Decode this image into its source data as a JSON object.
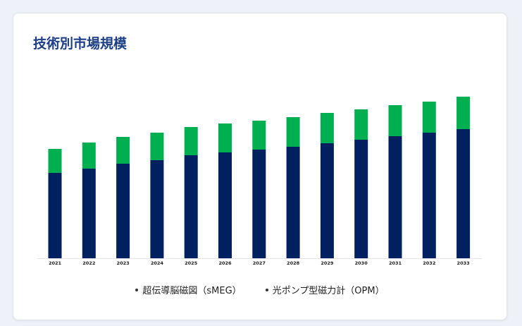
{
  "title": "技術別市場規模",
  "colors": {
    "smeg": "#002060",
    "opm": "#00b050",
    "title": "#1c3f86"
  },
  "chart_data": {
    "type": "bar",
    "stacked": true,
    "title": "技術別市場規模",
    "xlabel": "",
    "ylabel": "",
    "categories": [
      "2021",
      "2022",
      "2023",
      "2024",
      "2025",
      "2026",
      "2027",
      "2028",
      "2029",
      "2030",
      "2031",
      "2032",
      "2033"
    ],
    "series": [
      {
        "name": "超伝導脳磁図（sMEG）",
        "values": [
          121,
          127,
          134,
          139,
          146,
          150,
          154,
          158,
          163,
          168,
          173,
          178,
          183
        ]
      },
      {
        "name": "光ポンプ型磁力計（OPM）",
        "values": [
          34,
          37,
          38,
          39,
          40,
          41,
          41,
          42,
          43,
          43,
          44,
          44,
          46
        ]
      }
    ],
    "ylim": [
      0,
      229
    ],
    "grid": false,
    "legend": "bottom"
  }
}
